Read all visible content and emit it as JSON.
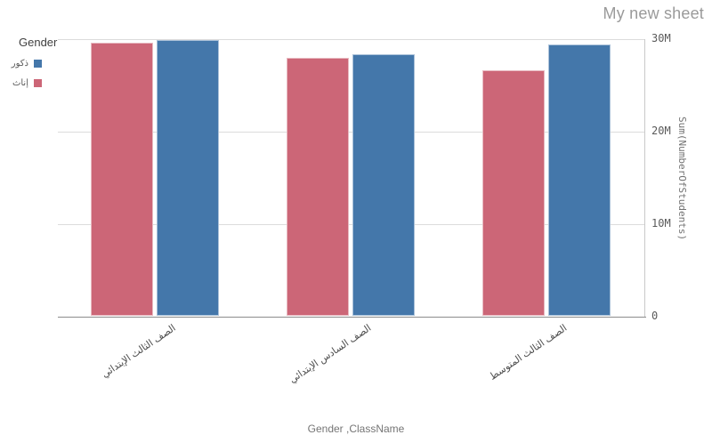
{
  "sheet": {
    "title": "My new sheet"
  },
  "legend": {
    "title": "Gender",
    "items": [
      {
        "label": "ذكور",
        "color": "#4477aa"
      },
      {
        "label": "إناث",
        "color": "#cc6677"
      }
    ]
  },
  "chart_data": {
    "type": "bar",
    "title": "",
    "xlabel": "Gender ,ClassName",
    "ylabel": "Sum(NumberOfStudents)",
    "categories": [
      "الصف الثالث الإبتدائي",
      "الصف السادس الإبتدائي",
      "الصف الثالث المتوسط"
    ],
    "series": [
      {
        "name": "ذكور",
        "color": "#4477aa",
        "values_millions": [
          29.9,
          28.4,
          29.4
        ]
      },
      {
        "name": "إناث",
        "color": "#cc6677",
        "values_millions": [
          29.6,
          28.0,
          26.6
        ]
      }
    ],
    "ylim_millions": [
      0,
      30
    ],
    "yticks": [
      {
        "value_millions": 0,
        "label": "0"
      },
      {
        "value_millions": 10,
        "label": "10M"
      },
      {
        "value_millions": 20,
        "label": "20M"
      },
      {
        "value_millions": 30,
        "label": "30M"
      }
    ],
    "grid": true,
    "legend_position": "top-left",
    "y_axis_side": "right",
    "bar_group_order": "females-left-males-right"
  }
}
